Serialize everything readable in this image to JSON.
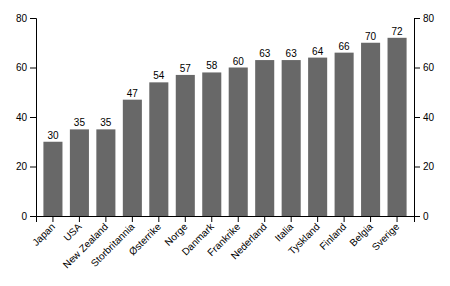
{
  "chart_data": {
    "type": "bar",
    "categories": [
      "Japan",
      "USA",
      "New Zealand",
      "Storbritannia",
      "Østerrike",
      "Norge",
      "Danmark",
      "Frankrike",
      "Nederland",
      "Italia",
      "Tyskland",
      "Finland",
      "Belgia",
      "Sverige"
    ],
    "values": [
      30,
      35,
      35,
      47,
      54,
      57,
      58,
      60,
      63,
      63,
      64,
      66,
      70,
      72
    ],
    "color": "#686868",
    "ylim": [
      0,
      80
    ],
    "yticks": [
      0,
      20,
      40,
      60,
      80
    ],
    "y2lim": [
      0,
      80
    ],
    "y2ticks": [
      0,
      20,
      40,
      60,
      80
    ],
    "data_labels": true
  }
}
